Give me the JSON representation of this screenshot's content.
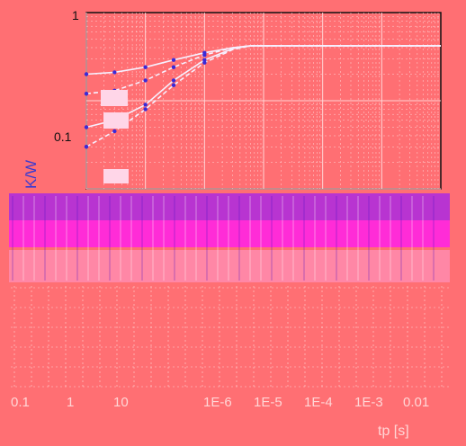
{
  "chart_data": {
    "type": "line",
    "title": "",
    "xlabel": "tp [s]",
    "ylabel": "K/W",
    "x_scale": "log",
    "y_scale": "log",
    "xlim": [
      1e-07,
      0.1
    ],
    "ylim": [
      0.01,
      1
    ],
    "grid": true,
    "y_tick_labels": [
      "1",
      "0.1"
    ],
    "x_tick_labels": [
      "0.1",
      "1",
      "10",
      "1E-6",
      "1E-5",
      "1E-4",
      "1E-3",
      "0.01"
    ],
    "series": [
      {
        "x": [
          1e-07,
          3e-07,
          1e-06,
          3e-06,
          1e-05,
          3e-05,
          6e-05,
          0.0001,
          0.001,
          0.01,
          0.1
        ],
        "values": [
          0.2,
          0.21,
          0.24,
          0.29,
          0.35,
          0.4,
          0.42,
          0.42,
          0.42,
          0.42,
          0.42
        ]
      },
      {
        "x": [
          1e-07,
          3e-07,
          1e-06,
          3e-06,
          1e-05,
          3e-05,
          6e-05,
          0.0001,
          0.001,
          0.01,
          0.1
        ],
        "values": [
          0.12,
          0.13,
          0.17,
          0.24,
          0.33,
          0.4,
          0.42,
          0.42,
          0.42,
          0.42,
          0.42
        ]
      },
      {
        "x": [
          1e-07,
          3e-07,
          1e-06,
          3e-06,
          1e-05,
          3e-05,
          6e-05,
          0.0001,
          0.001,
          0.01,
          0.1
        ],
        "values": [
          0.05,
          0.06,
          0.09,
          0.17,
          0.29,
          0.39,
          0.42,
          0.42,
          0.42,
          0.42,
          0.42
        ]
      },
      {
        "x": [
          1e-07,
          3e-07,
          1e-06,
          3e-06,
          1e-05,
          3e-05,
          6e-05,
          0.0001,
          0.001,
          0.01,
          0.1
        ],
        "values": [
          0.03,
          0.045,
          0.08,
          0.15,
          0.27,
          0.38,
          0.42,
          0.42,
          0.42,
          0.42,
          0.42
        ]
      }
    ],
    "colors": {
      "background": "#ff6f73",
      "grid": "#ffd6d6",
      "curve": "#f6f0ff",
      "marker": "#3a2ad8",
      "band": "#c020e0"
    }
  }
}
